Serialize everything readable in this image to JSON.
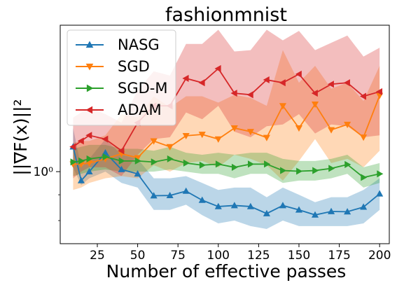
{
  "chart_data": {
    "type": "line",
    "title": "fashionmnist",
    "xlabel": "Number of effective passes",
    "ylabel": "||∇F(x)||²",
    "yscale": "log",
    "xlim": [
      2,
      206
    ],
    "ylim": [
      0.72,
      1.95
    ],
    "x_ticks": [
      25,
      50,
      75,
      100,
      125,
      150,
      175,
      200
    ],
    "y_tick_label": "10⁰",
    "legend_position": "top-left",
    "grid": false,
    "x": [
      10,
      15,
      20,
      30,
      40,
      50,
      60,
      70,
      80,
      90,
      100,
      110,
      120,
      130,
      140,
      150,
      160,
      170,
      180,
      190,
      200
    ],
    "series": [
      {
        "name": "NASG",
        "color": "#1f77b4",
        "marker": "triangle-up",
        "values": [
          1.12,
          0.96,
          1.0,
          1.09,
          1.01,
          0.99,
          0.896,
          0.897,
          0.915,
          0.878,
          0.853,
          0.857,
          0.853,
          0.826,
          0.857,
          0.84,
          0.821,
          0.834,
          0.833,
          0.851,
          0.904
        ],
        "band": [
          [
            1.02,
            1.22
          ],
          [
            0.94,
            1.02
          ],
          [
            0.97,
            1.06
          ],
          [
            1.0,
            1.16
          ],
          [
            0.95,
            1.08
          ],
          [
            0.93,
            1.06
          ],
          [
            0.84,
            0.97
          ],
          [
            0.84,
            0.97
          ],
          [
            0.86,
            0.98
          ],
          [
            0.82,
            0.95
          ],
          [
            0.79,
            0.92
          ],
          [
            0.8,
            0.93
          ],
          [
            0.78,
            0.93
          ],
          [
            0.77,
            0.89
          ],
          [
            0.8,
            0.93
          ],
          [
            0.78,
            0.9
          ],
          [
            0.78,
            0.87
          ],
          [
            0.78,
            0.89
          ],
          [
            0.78,
            0.89
          ],
          [
            0.79,
            0.92
          ],
          [
            0.84,
            0.97
          ]
        ]
      },
      {
        "name": "SGD",
        "color": "#ff7f0e",
        "marker": "triangle-down",
        "values": [
          1.035,
          1.035,
          1.04,
          1.06,
          1.085,
          1.065,
          1.15,
          1.12,
          1.178,
          1.185,
          1.16,
          1.22,
          1.2,
          1.168,
          1.35,
          1.22,
          1.36,
          1.21,
          1.24,
          1.17,
          1.415
        ],
        "band": [
          [
            0.92,
            1.14
          ],
          [
            0.93,
            1.15
          ],
          [
            0.95,
            1.15
          ],
          [
            0.97,
            1.18
          ],
          [
            0.98,
            1.3
          ],
          [
            0.97,
            1.28
          ],
          [
            1.03,
            1.41
          ],
          [
            1.0,
            1.34
          ],
          [
            1.04,
            1.41
          ],
          [
            1.05,
            1.41
          ],
          [
            1.02,
            1.37
          ],
          [
            1.08,
            1.42
          ],
          [
            1.06,
            1.4
          ],
          [
            1.03,
            1.35
          ],
          [
            0.96,
            1.74
          ],
          [
            1.05,
            1.5
          ],
          [
            1.16,
            1.62
          ],
          [
            1.04,
            1.46
          ],
          [
            1.06,
            1.5
          ],
          [
            1.02,
            1.38
          ],
          [
            1.1,
            1.62
          ]
        ]
      },
      {
        "name": "SGD-M",
        "color": "#2ca02c",
        "marker": "triangle-right",
        "values": [
          1.045,
          1.05,
          1.06,
          1.07,
          1.05,
          1.05,
          1.045,
          1.06,
          1.04,
          1.03,
          1.035,
          1.02,
          1.035,
          1.035,
          1.005,
          1.002,
          1.005,
          1.015,
          1.033,
          0.974,
          0.99
        ],
        "band": [
          [
            0.98,
            1.11
          ],
          [
            0.99,
            1.12
          ],
          [
            1.0,
            1.13
          ],
          [
            1.01,
            1.13
          ],
          [
            1.0,
            1.11
          ],
          [
            1.0,
            1.11
          ],
          [
            1.0,
            1.1
          ],
          [
            1.01,
            1.12
          ],
          [
            1.0,
            1.09
          ],
          [
            0.99,
            1.08
          ],
          [
            0.99,
            1.09
          ],
          [
            0.97,
            1.08
          ],
          [
            0.99,
            1.09
          ],
          [
            0.99,
            1.09
          ],
          [
            0.95,
            1.06
          ],
          [
            0.96,
            1.05
          ],
          [
            0.96,
            1.05
          ],
          [
            0.97,
            1.06
          ],
          [
            0.99,
            1.08
          ],
          [
            0.93,
            1.02
          ],
          [
            0.95,
            1.04
          ]
        ]
      },
      {
        "name": "ADAM",
        "color": "#d62728",
        "marker": "triangle-left",
        "values": [
          1.12,
          1.15,
          1.18,
          1.16,
          1.1,
          1.25,
          1.35,
          1.35,
          1.53,
          1.5,
          1.6,
          1.43,
          1.42,
          1.52,
          1.5,
          1.56,
          1.43,
          1.49,
          1.5,
          1.41,
          1.44
        ],
        "band": [
          [
            0.97,
            1.28
          ],
          [
            1.0,
            1.31
          ],
          [
            1.02,
            1.34
          ],
          [
            1.02,
            1.3
          ],
          [
            0.98,
            1.25
          ],
          [
            1.08,
            1.45
          ],
          [
            1.16,
            1.58
          ],
          [
            1.17,
            1.55
          ],
          [
            1.31,
            1.79
          ],
          [
            1.27,
            1.79
          ],
          [
            1.35,
            1.91
          ],
          [
            1.2,
            1.73
          ],
          [
            1.17,
            1.74
          ],
          [
            1.23,
            1.91
          ],
          [
            1.24,
            1.82
          ],
          [
            1.3,
            1.9
          ],
          [
            1.19,
            1.74
          ],
          [
            1.24,
            1.8
          ],
          [
            1.23,
            1.86
          ],
          [
            1.17,
            1.69
          ],
          [
            1.18,
            1.76
          ]
        ]
      }
    ]
  }
}
